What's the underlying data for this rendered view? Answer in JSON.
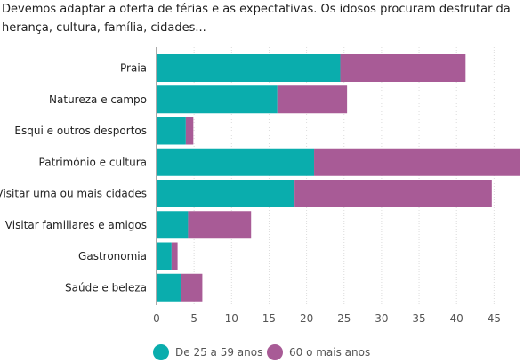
{
  "chart_data": {
    "type": "bar",
    "orientation": "horizontal",
    "stacked": true,
    "title": "Devemos adaptar a oferta de férias e as expectativas. Os idosos procuram desfrutar da herança, cultura, família, cidades...",
    "categories": [
      "Praia",
      "Natureza e campo",
      "Esqui e outros desportos",
      "Património e cultura",
      "Visitar uma ou mais cidades",
      "Visitar familiares e amigos",
      "Gastronomia",
      "Saúde e beleza"
    ],
    "series": [
      {
        "name": "De 25 a 59 anos",
        "color": "#0aadad",
        "values": [
          24.5,
          16.1,
          3.9,
          21.0,
          18.4,
          4.2,
          2.0,
          3.2
        ]
      },
      {
        "name": "60 o mais anos",
        "color": "#a85b96",
        "values": [
          16.7,
          9.3,
          1.0,
          27.4,
          26.3,
          8.4,
          0.8,
          2.9
        ]
      }
    ],
    "xlim": [
      0,
      48
    ],
    "xticks": [
      0,
      5,
      10,
      15,
      20,
      25,
      30,
      35,
      40,
      45
    ],
    "grid": true,
    "legend_position": "bottom"
  }
}
